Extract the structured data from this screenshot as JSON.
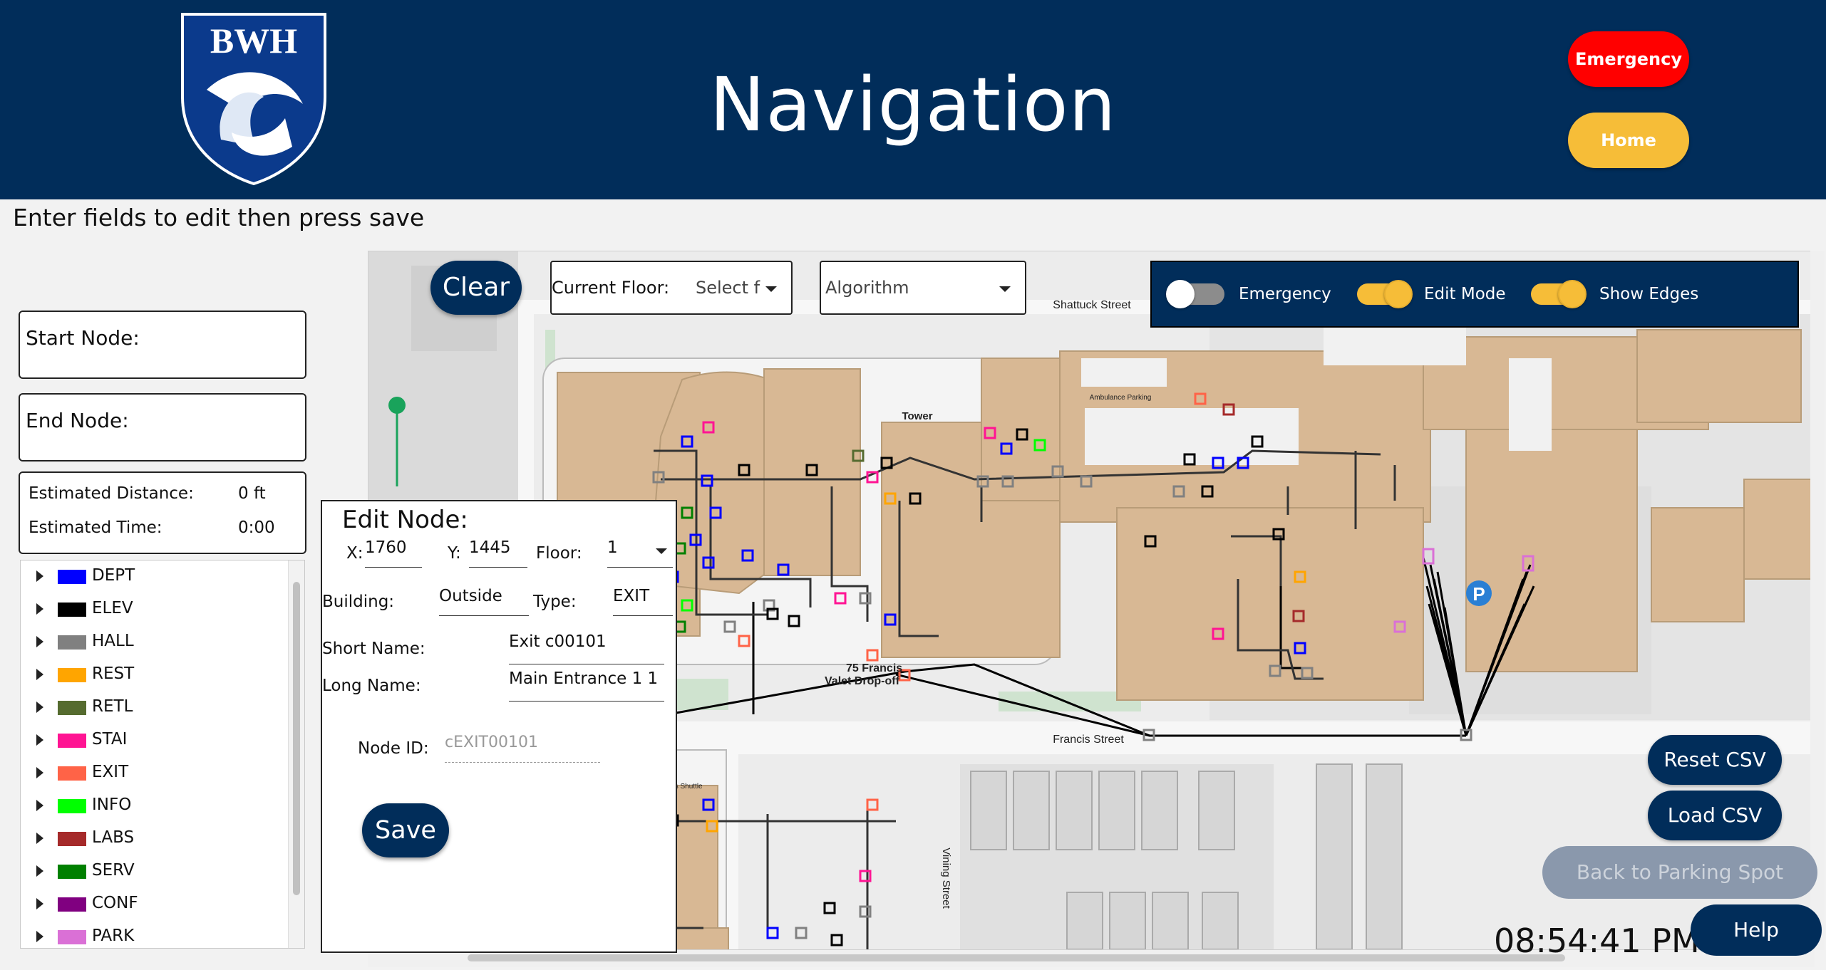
{
  "header": {
    "logo_text": "BWH",
    "title": "Navigation",
    "emergency_label": "Emergency",
    "home_label": "Home"
  },
  "instruction": "Enter fields to edit then press save",
  "left_panel": {
    "start_node_label": "Start Node:",
    "end_node_label": "End Node:",
    "estimated_distance_label": "Estimated Distance:",
    "estimated_distance_value": "0 ft",
    "estimated_time_label": "Estimated Time:",
    "estimated_time_value": "0:00"
  },
  "legend": [
    {
      "label": "DEPT",
      "color": "#0000ff"
    },
    {
      "label": "ELEV",
      "color": "#000000"
    },
    {
      "label": "HALL",
      "color": "#808080"
    },
    {
      "label": "REST",
      "color": "#ffa500"
    },
    {
      "label": "RETL",
      "color": "#556b2f"
    },
    {
      "label": "STAI",
      "color": "#ff1493"
    },
    {
      "label": "EXIT",
      "color": "#ff6347"
    },
    {
      "label": "INFO",
      "color": "#00ff00"
    },
    {
      "label": "LABS",
      "color": "#a52a2a"
    },
    {
      "label": "SERV",
      "color": "#008000"
    },
    {
      "label": "CONF",
      "color": "#800080"
    },
    {
      "label": "PARK",
      "color": "#da70d6"
    }
  ],
  "map_controls": {
    "clear_label": "Clear",
    "floor_label": "Current Floor:",
    "floor_value": "Select f",
    "algorithm_value": "Algorithm",
    "toggles": [
      {
        "label": "Emergency",
        "on": false
      },
      {
        "label": "Edit Mode",
        "on": true
      },
      {
        "label": "Show Edges",
        "on": true
      }
    ]
  },
  "map_labels": {
    "shattuck": "Shattuck Street",
    "francis": "Francis Street",
    "vining": "Vining Street",
    "valet": "75 Francis",
    "valet2": "Valet Drop-off",
    "tower": "Tower",
    "ambulance": "Ambulance Parking",
    "partners": "Partner's Shuttle",
    "parking": "P"
  },
  "edit_node": {
    "title": "Edit Node:",
    "x_label": "X:",
    "x_value": "1760",
    "y_label": "Y:",
    "y_value": "1445",
    "floor_label": "Floor:",
    "floor_value": "1",
    "building_label": "Building:",
    "building_value": "Outside",
    "type_label": "Type:",
    "type_value": "EXIT",
    "short_name_label": "Short Name:",
    "short_name_value": "Exit c00101",
    "long_name_label": "Long Name:",
    "long_name_value": "Main Entrance 1 1",
    "node_id_label": "Node ID:",
    "node_id_value": "cEXIT00101",
    "save_label": "Save"
  },
  "bottom_buttons": {
    "reset_csv": "Reset CSV",
    "load_csv": "Load CSV",
    "back_to_parking": "Back to Parking Spot",
    "help": "Help"
  },
  "clock": "08:54:41 PM",
  "colors": {
    "brand_navy": "#012d5a",
    "emergency_red": "#ff0000",
    "home_gold": "#f6bd38",
    "building": "#d8b894"
  }
}
